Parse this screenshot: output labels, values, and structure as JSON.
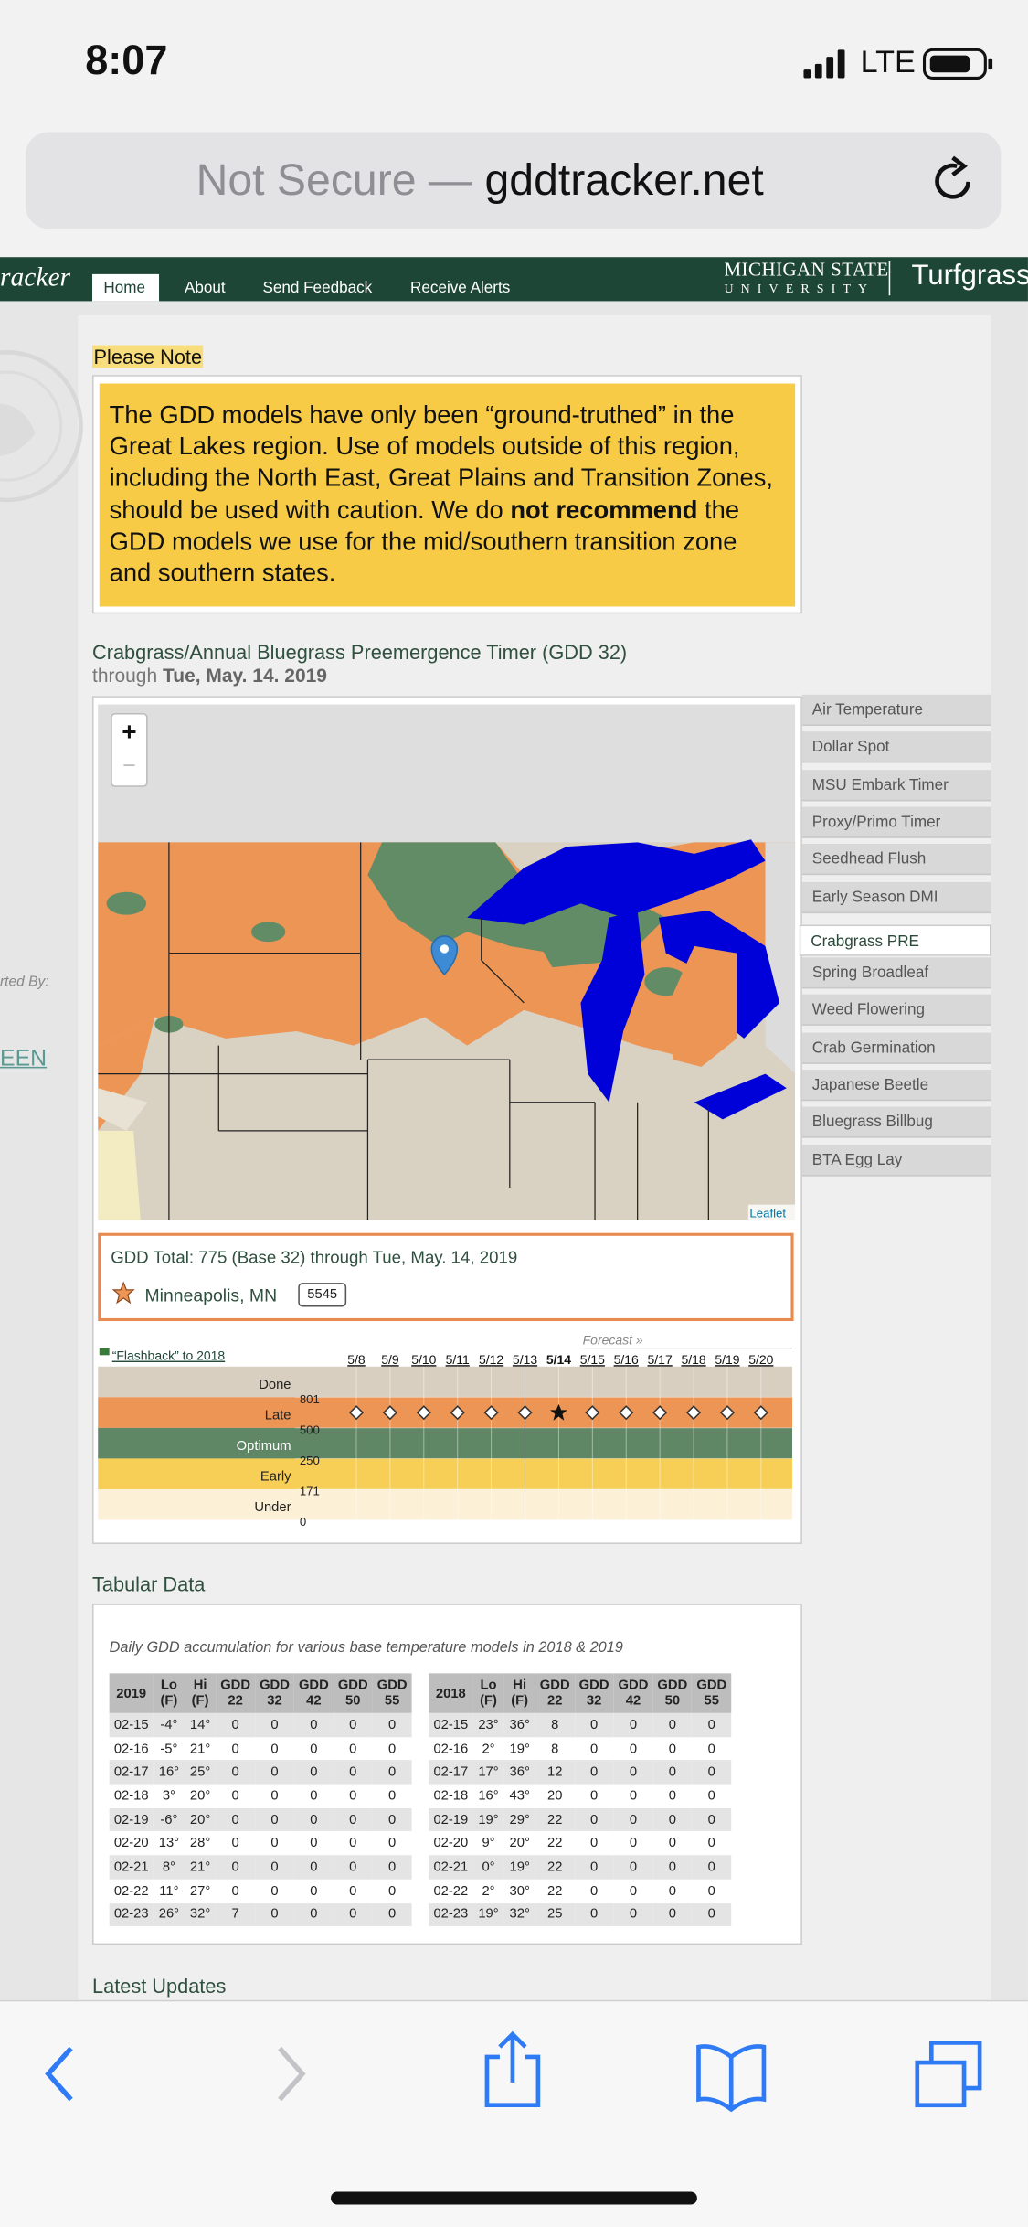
{
  "status_bar": {
    "time": "8:07",
    "network": "LTE"
  },
  "browser": {
    "security": "Not Secure —",
    "url": "gddtracker.net"
  },
  "nav": {
    "brand": "racker",
    "items": [
      "Home",
      "About",
      "Send Feedback",
      "Receive Alerts"
    ],
    "active": 0,
    "university_line1": "MICHIGAN STATE",
    "university_line2": "UNIVERSITY",
    "department": "Turfgrass"
  },
  "sidebar": {
    "supported_by": "rted By:",
    "link": "EEN"
  },
  "note": {
    "heading": "Please Note",
    "text_before": "The GDD models have only been “ground-truthed” in the Great Lakes region. Use of models outside of this region, including the North East, Great Plains and Transition Zones, should be used with caution. We do ",
    "bold": "not recommend",
    "text_after": " the GDD models we use for the mid/southern transition zone and southern states."
  },
  "timer": {
    "title": "Crabgrass/Annual Bluegrass Preemergence Timer (GDD 32)",
    "through": "through",
    "date": "Tue, May. 14. 2019",
    "map_zoom_in": "+",
    "map_zoom_out": "−",
    "map_attribution": "Leaflet",
    "models": [
      "Air Temperature",
      "Dollar Spot",
      "MSU Embark Timer",
      "Proxy/Primo Timer",
      "Seedhead Flush",
      "Early Season DMI",
      "Crabgrass PRE",
      "Spring Broadleaf",
      "Weed Flowering",
      "Crab Germination",
      "Japanese Beetle",
      "Bluegrass Billbug",
      "BTA Egg Lay"
    ],
    "active_model": 6,
    "gdd_total": "GDD Total: 775 (Base 32) through Tue, May. 14, 2019",
    "location": "Minneapolis, MN",
    "station": "5545"
  },
  "chart_data": {
    "type": "stage-timeline",
    "flashback": "“Flashback” to 2018",
    "forecast_label": "Forecast »",
    "categories": [
      "5/8",
      "5/9",
      "5/10",
      "5/11",
      "5/12",
      "5/13",
      "5/14",
      "5/15",
      "5/16",
      "5/17",
      "5/18",
      "5/19",
      "5/20"
    ],
    "today_index": 6,
    "forecast_start_index": 7,
    "stages": [
      {
        "name": "Done",
        "color": "#d8cfc0"
      },
      {
        "name": "Late",
        "color": "#ec9555"
      },
      {
        "name": "Optimum",
        "color": "#5f8766"
      },
      {
        "name": "Early",
        "color": "#f7cf57"
      },
      {
        "name": "Under",
        "color": "#fcf0d7"
      }
    ],
    "yticks": [
      801,
      500,
      250,
      171,
      0
    ],
    "values": [
      650,
      650,
      650,
      650,
      650,
      650,
      650,
      650,
      650,
      650,
      650,
      650,
      650
    ]
  },
  "tabular": {
    "heading": "Tabular Data",
    "caption": "Daily GDD accumulation for various base temperature models in 2018 & 2019",
    "tables": [
      {
        "header": [
          "2019",
          "Lo (F)",
          "Hi (F)",
          "GDD 22",
          "GDD 32",
          "GDD 42",
          "GDD 50",
          "GDD 55"
        ],
        "rows": [
          [
            "02-15",
            "-4°",
            "14°",
            "0",
            "0",
            "0",
            "0",
            "0"
          ],
          [
            "02-16",
            "-5°",
            "21°",
            "0",
            "0",
            "0",
            "0",
            "0"
          ],
          [
            "02-17",
            "16°",
            "25°",
            "0",
            "0",
            "0",
            "0",
            "0"
          ],
          [
            "02-18",
            "3°",
            "20°",
            "0",
            "0",
            "0",
            "0",
            "0"
          ],
          [
            "02-19",
            "-6°",
            "20°",
            "0",
            "0",
            "0",
            "0",
            "0"
          ],
          [
            "02-20",
            "13°",
            "28°",
            "0",
            "0",
            "0",
            "0",
            "0"
          ],
          [
            "02-21",
            "8°",
            "21°",
            "0",
            "0",
            "0",
            "0",
            "0"
          ],
          [
            "02-22",
            "11°",
            "27°",
            "0",
            "0",
            "0",
            "0",
            "0"
          ],
          [
            "02-23",
            "26°",
            "32°",
            "7",
            "0",
            "0",
            "0",
            "0"
          ]
        ]
      },
      {
        "header": [
          "2018",
          "Lo (F)",
          "Hi (F)",
          "GDD 22",
          "GDD 32",
          "GDD 42",
          "GDD 50",
          "GDD 55"
        ],
        "rows": [
          [
            "02-15",
            "23°",
            "36°",
            "8",
            "0",
            "0",
            "0",
            "0"
          ],
          [
            "02-16",
            "2°",
            "19°",
            "8",
            "0",
            "0",
            "0",
            "0"
          ],
          [
            "02-17",
            "17°",
            "36°",
            "12",
            "0",
            "0",
            "0",
            "0"
          ],
          [
            "02-18",
            "16°",
            "43°",
            "20",
            "0",
            "0",
            "0",
            "0"
          ],
          [
            "02-19",
            "19°",
            "29°",
            "22",
            "0",
            "0",
            "0",
            "0"
          ],
          [
            "02-20",
            "9°",
            "20°",
            "22",
            "0",
            "0",
            "0",
            "0"
          ],
          [
            "02-21",
            "0°",
            "19°",
            "22",
            "0",
            "0",
            "0",
            "0"
          ],
          [
            "02-22",
            "2°",
            "30°",
            "22",
            "0",
            "0",
            "0",
            "0"
          ],
          [
            "02-23",
            "19°",
            "32°",
            "25",
            "0",
            "0",
            "0",
            "0"
          ]
        ]
      }
    ]
  },
  "latest_updates": "Latest Updates"
}
